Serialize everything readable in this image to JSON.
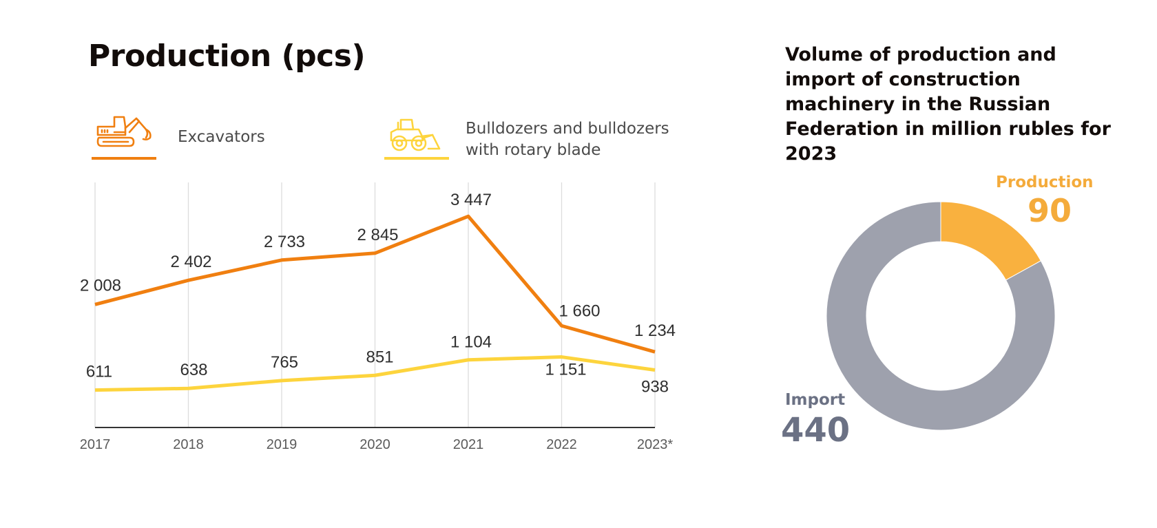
{
  "colors": {
    "excavators": "#f07f10",
    "bulldozers": "#fdd43d",
    "production_slice": "#f9b13f",
    "import_slice": "#9ea1ad",
    "import_text": "#6b7184",
    "gridline": "#dcdcdc",
    "axis": "#333333"
  },
  "line_panel": {
    "title": "Production (pcs)",
    "legend": [
      {
        "icon": "excavator-icon",
        "label_lines": [
          "Excavators"
        ]
      },
      {
        "icon": "bulldozer-icon",
        "label_lines": [
          "Bulldozers and bulldozers",
          "with rotary blade"
        ]
      }
    ]
  },
  "donut_panel": {
    "title": "Volume of production and import of construction machinery in the Russian Federation in million rubles for 2023"
  },
  "chart_data": [
    {
      "type": "line",
      "title": "Production (pcs)",
      "xlabel": "",
      "ylabel": "",
      "categories": [
        "2017",
        "2018",
        "2019",
        "2020",
        "2021",
        "2022",
        "2023*"
      ],
      "ylim": [
        0,
        4000
      ],
      "grid": "vertical",
      "legend_position": "top",
      "series": [
        {
          "name": "Excavators",
          "values": [
            2008,
            2402,
            2733,
            2845,
            3447,
            1660,
            1234
          ],
          "labels": [
            "2 008",
            "2 402",
            "2 733",
            "2 845",
            "3 447",
            "1 660",
            "1 234"
          ]
        },
        {
          "name": "Bulldozers and bulldozers with rotary blade",
          "values": [
            611,
            638,
            765,
            851,
            1104,
            1151,
            938
          ],
          "labels": [
            "611",
            "638",
            "765",
            "851",
            "1 104",
            "1 151",
            "938"
          ]
        }
      ]
    },
    {
      "type": "pie",
      "variant": "donut",
      "title": "Volume of production and import of construction machinery in the Russian Federation in million rubles for 2023",
      "slices": [
        {
          "name": "Production",
          "value": 90,
          "label": "90"
        },
        {
          "name": "Import",
          "value": 440,
          "label": "440"
        }
      ]
    }
  ]
}
